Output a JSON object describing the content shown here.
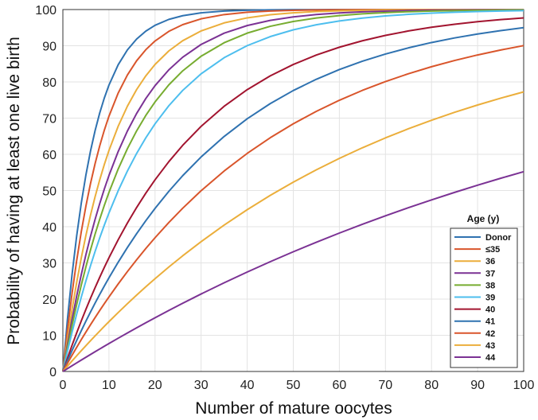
{
  "chart_data": {
    "type": "line",
    "title": "",
    "xlabel": "Number of mature oocytes",
    "ylabel": "Probability of having at least one live birth",
    "xlim": [
      0,
      100
    ],
    "ylim": [
      0,
      100
    ],
    "xticks": [
      "0",
      "10",
      "20",
      "30",
      "40",
      "50",
      "60",
      "70",
      "80",
      "90",
      "100"
    ],
    "yticks": [
      "0",
      "10",
      "20",
      "30",
      "40",
      "50",
      "60",
      "70",
      "80",
      "90",
      "100"
    ],
    "grid": true,
    "legend_title": "Age (y)",
    "legend_position": "bottom-right",
    "x": [
      0,
      1,
      2,
      3,
      4,
      5,
      6,
      7,
      8,
      9,
      10,
      12,
      14,
      16,
      18,
      20,
      23,
      26,
      30,
      35,
      40,
      45,
      50,
      55,
      60,
      65,
      70,
      75,
      80,
      85,
      90,
      95,
      100
    ],
    "series": [
      {
        "name": "Donor",
        "color": "#2f72b0",
        "per_oocyte_rate": 0.145,
        "values_at_10_20_40_100": [
          79,
          96,
          100,
          100
        ]
      },
      {
        "name": "≤35",
        "color": "#d9552b",
        "per_oocyte_rate": 0.115,
        "values_at_10_20_40_100": [
          70,
          91,
          99,
          100
        ]
      },
      {
        "name": "36",
        "color": "#ebae3b",
        "per_oocyte_rate": 0.09,
        "values_at_10_20_40_100": [
          61,
          85,
          97,
          100
        ]
      },
      {
        "name": "37",
        "color": "#7b3294",
        "per_oocyte_rate": 0.075,
        "values_at_10_20_40_100": [
          53,
          78,
          95,
          100
        ]
      },
      {
        "name": "38",
        "color": "#77ac30",
        "per_oocyte_rate": 0.066,
        "values_at_10_20_40_100": [
          48,
          73,
          93,
          100
        ]
      },
      {
        "name": "39",
        "color": "#4dbeee",
        "per_oocyte_rate": 0.056,
        "values_at_10_20_40_100": [
          43,
          67,
          90,
          99
        ]
      },
      {
        "name": "40",
        "color": "#a2142f",
        "per_oocyte_rate": 0.037,
        "values_at_10_20_40_100": [
          31,
          52,
          77,
          97
        ]
      },
      {
        "name": "41",
        "color": "#2f72b0",
        "per_oocyte_rate": 0.0295,
        "values_at_10_20_40_100": [
          26,
          45,
          69,
          95
        ]
      },
      {
        "name": "42",
        "color": "#d9552b",
        "per_oocyte_rate": 0.0228,
        "values_at_10_20_40_100": [
          20,
          37,
          60,
          90
        ]
      },
      {
        "name": "43",
        "color": "#ebae3b",
        "per_oocyte_rate": 0.0147,
        "values_at_10_20_40_100": [
          14,
          26,
          44,
          77
        ]
      },
      {
        "name": "44",
        "color": "#7b3294",
        "per_oocyte_rate": 0.008,
        "values_at_10_20_40_100": [
          8,
          15,
          27,
          55
        ]
      }
    ]
  }
}
